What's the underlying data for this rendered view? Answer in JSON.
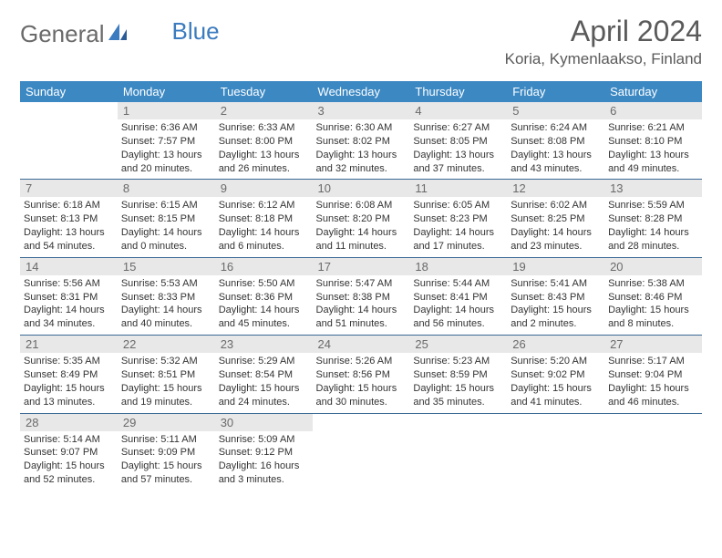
{
  "logo": {
    "general": "General",
    "blue": "Blue"
  },
  "title": "April 2024",
  "location": "Koria, Kymenlaakso, Finland",
  "colors": {
    "header_bg": "#3b88c3",
    "header_text": "#ffffff",
    "daynum_bg": "#e8e8e8",
    "daynum_text": "#6a6a6a",
    "rule": "#3b6b95",
    "logo_gray": "#6a6a6a",
    "logo_blue": "#3b7bbf"
  },
  "weekdays": [
    "Sunday",
    "Monday",
    "Tuesday",
    "Wednesday",
    "Thursday",
    "Friday",
    "Saturday"
  ],
  "weeks": [
    [
      null,
      {
        "n": "1",
        "sr": "6:36 AM",
        "ss": "7:57 PM",
        "dl": "13 hours and 20 minutes."
      },
      {
        "n": "2",
        "sr": "6:33 AM",
        "ss": "8:00 PM",
        "dl": "13 hours and 26 minutes."
      },
      {
        "n": "3",
        "sr": "6:30 AM",
        "ss": "8:02 PM",
        "dl": "13 hours and 32 minutes."
      },
      {
        "n": "4",
        "sr": "6:27 AM",
        "ss": "8:05 PM",
        "dl": "13 hours and 37 minutes."
      },
      {
        "n": "5",
        "sr": "6:24 AM",
        "ss": "8:08 PM",
        "dl": "13 hours and 43 minutes."
      },
      {
        "n": "6",
        "sr": "6:21 AM",
        "ss": "8:10 PM",
        "dl": "13 hours and 49 minutes."
      }
    ],
    [
      {
        "n": "7",
        "sr": "6:18 AM",
        "ss": "8:13 PM",
        "dl": "13 hours and 54 minutes."
      },
      {
        "n": "8",
        "sr": "6:15 AM",
        "ss": "8:15 PM",
        "dl": "14 hours and 0 minutes."
      },
      {
        "n": "9",
        "sr": "6:12 AM",
        "ss": "8:18 PM",
        "dl": "14 hours and 6 minutes."
      },
      {
        "n": "10",
        "sr": "6:08 AM",
        "ss": "8:20 PM",
        "dl": "14 hours and 11 minutes."
      },
      {
        "n": "11",
        "sr": "6:05 AM",
        "ss": "8:23 PM",
        "dl": "14 hours and 17 minutes."
      },
      {
        "n": "12",
        "sr": "6:02 AM",
        "ss": "8:25 PM",
        "dl": "14 hours and 23 minutes."
      },
      {
        "n": "13",
        "sr": "5:59 AM",
        "ss": "8:28 PM",
        "dl": "14 hours and 28 minutes."
      }
    ],
    [
      {
        "n": "14",
        "sr": "5:56 AM",
        "ss": "8:31 PM",
        "dl": "14 hours and 34 minutes."
      },
      {
        "n": "15",
        "sr": "5:53 AM",
        "ss": "8:33 PM",
        "dl": "14 hours and 40 minutes."
      },
      {
        "n": "16",
        "sr": "5:50 AM",
        "ss": "8:36 PM",
        "dl": "14 hours and 45 minutes."
      },
      {
        "n": "17",
        "sr": "5:47 AM",
        "ss": "8:38 PM",
        "dl": "14 hours and 51 minutes."
      },
      {
        "n": "18",
        "sr": "5:44 AM",
        "ss": "8:41 PM",
        "dl": "14 hours and 56 minutes."
      },
      {
        "n": "19",
        "sr": "5:41 AM",
        "ss": "8:43 PM",
        "dl": "15 hours and 2 minutes."
      },
      {
        "n": "20",
        "sr": "5:38 AM",
        "ss": "8:46 PM",
        "dl": "15 hours and 8 minutes."
      }
    ],
    [
      {
        "n": "21",
        "sr": "5:35 AM",
        "ss": "8:49 PM",
        "dl": "15 hours and 13 minutes."
      },
      {
        "n": "22",
        "sr": "5:32 AM",
        "ss": "8:51 PM",
        "dl": "15 hours and 19 minutes."
      },
      {
        "n": "23",
        "sr": "5:29 AM",
        "ss": "8:54 PM",
        "dl": "15 hours and 24 minutes."
      },
      {
        "n": "24",
        "sr": "5:26 AM",
        "ss": "8:56 PM",
        "dl": "15 hours and 30 minutes."
      },
      {
        "n": "25",
        "sr": "5:23 AM",
        "ss": "8:59 PM",
        "dl": "15 hours and 35 minutes."
      },
      {
        "n": "26",
        "sr": "5:20 AM",
        "ss": "9:02 PM",
        "dl": "15 hours and 41 minutes."
      },
      {
        "n": "27",
        "sr": "5:17 AM",
        "ss": "9:04 PM",
        "dl": "15 hours and 46 minutes."
      }
    ],
    [
      {
        "n": "28",
        "sr": "5:14 AM",
        "ss": "9:07 PM",
        "dl": "15 hours and 52 minutes."
      },
      {
        "n": "29",
        "sr": "5:11 AM",
        "ss": "9:09 PM",
        "dl": "15 hours and 57 minutes."
      },
      {
        "n": "30",
        "sr": "5:09 AM",
        "ss": "9:12 PM",
        "dl": "16 hours and 3 minutes."
      },
      null,
      null,
      null,
      null
    ]
  ],
  "labels": {
    "sunrise": "Sunrise:",
    "sunset": "Sunset:",
    "daylight": "Daylight:"
  }
}
